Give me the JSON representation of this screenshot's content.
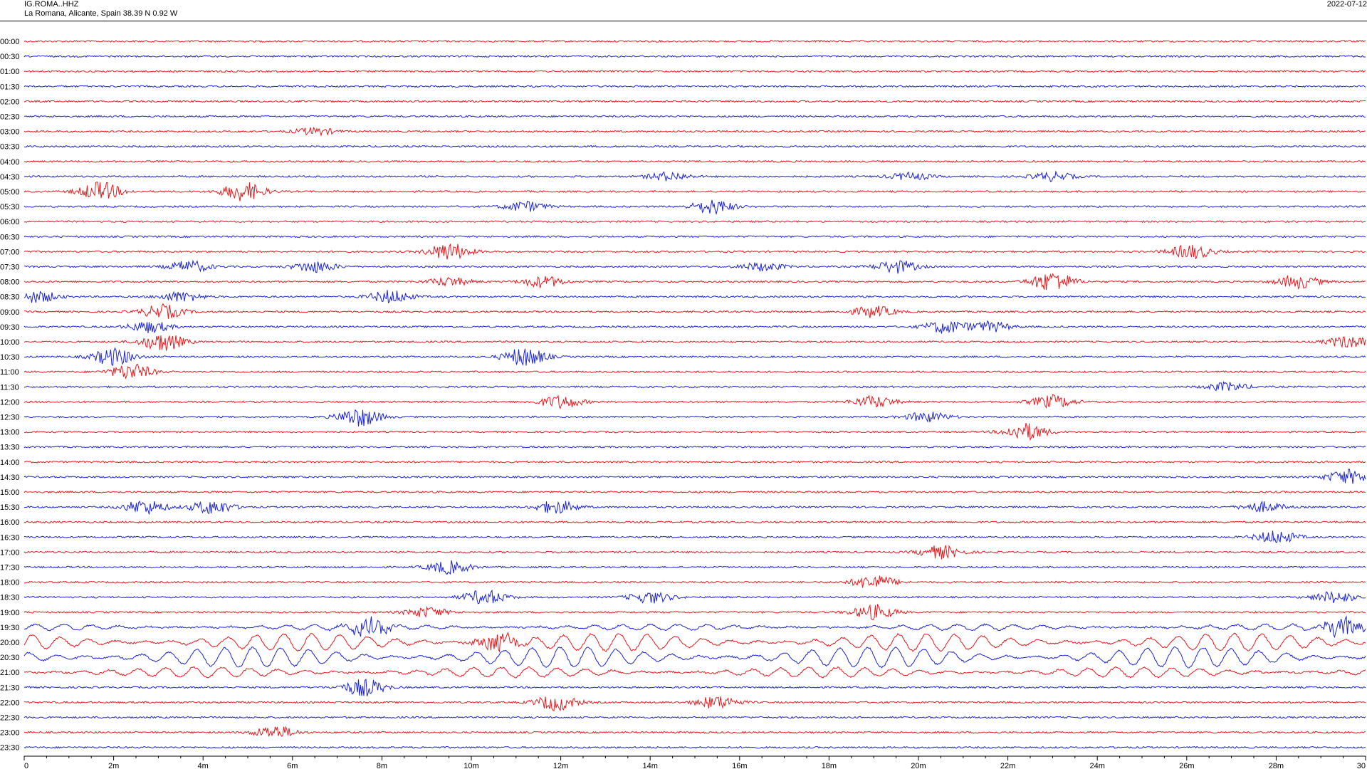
{
  "header": {
    "station": "IG.ROMA..HHZ",
    "location": "La Romana, Alicante, Spain  38.39 N 0.92 W",
    "date": "2022-07-12"
  },
  "chart_data": {
    "type": "line",
    "title": "IG.ROMA..HHZ",
    "subtitle": "La Romana, Alicante, Spain  38.39 N 0.92 W",
    "xlabel": "",
    "ylabel": "",
    "xlim": [
      0,
      30
    ],
    "x_ticks": [
      "0",
      "2m",
      "4m",
      "6m",
      "8m",
      "10m",
      "12m",
      "14m",
      "16m",
      "18m",
      "20m",
      "22m",
      "24m",
      "26m",
      "28m",
      "30"
    ],
    "colors": [
      "#e8171b",
      "#1a22d6"
    ],
    "grid": false,
    "rows": [
      "00:00",
      "00:30",
      "01:00",
      "01:30",
      "02:00",
      "02:30",
      "03:00",
      "03:30",
      "04:00",
      "04:30",
      "05:00",
      "05:30",
      "06:00",
      "06:30",
      "07:00",
      "07:30",
      "08:00",
      "08:30",
      "09:00",
      "09:30",
      "10:00",
      "10:30",
      "11:00",
      "11:30",
      "12:00",
      "12:30",
      "13:00",
      "13:30",
      "14:00",
      "14:30",
      "15:00",
      "15:30",
      "16:00",
      "16:30",
      "17:00",
      "17:30",
      "18:00",
      "18:30",
      "19:00",
      "19:30",
      "20:00",
      "20:30",
      "21:00",
      "21:30",
      "22:00",
      "22:30",
      "23:00",
      "23:30"
    ],
    "events": [
      {
        "row": "03:00",
        "x": 6.5,
        "amp": 5
      },
      {
        "row": "04:30",
        "x": 14.4,
        "amp": 6
      },
      {
        "row": "04:30",
        "x": 19.8,
        "amp": 5
      },
      {
        "row": "04:30",
        "x": 23.0,
        "amp": 6
      },
      {
        "row": "05:00",
        "x": 1.7,
        "amp": 13
      },
      {
        "row": "05:00",
        "x": 4.9,
        "amp": 13
      },
      {
        "row": "05:30",
        "x": 11.2,
        "amp": 7
      },
      {
        "row": "05:30",
        "x": 15.4,
        "amp": 10
      },
      {
        "row": "07:00",
        "x": 9.5,
        "amp": 12
      },
      {
        "row": "07:00",
        "x": 26.1,
        "amp": 10
      },
      {
        "row": "07:30",
        "x": 3.7,
        "amp": 8
      },
      {
        "row": "07:30",
        "x": 6.5,
        "amp": 8
      },
      {
        "row": "07:30",
        "x": 16.5,
        "amp": 6
      },
      {
        "row": "07:30",
        "x": 19.5,
        "amp": 9
      },
      {
        "row": "08:00",
        "x": 9.5,
        "amp": 6
      },
      {
        "row": "08:00",
        "x": 11.6,
        "amp": 8
      },
      {
        "row": "08:00",
        "x": 23.0,
        "amp": 14
      },
      {
        "row": "08:00",
        "x": 28.5,
        "amp": 9
      },
      {
        "row": "08:30",
        "x": 0.3,
        "amp": 8
      },
      {
        "row": "08:30",
        "x": 3.5,
        "amp": 7
      },
      {
        "row": "08:30",
        "x": 8.2,
        "amp": 9
      },
      {
        "row": "09:00",
        "x": 3.1,
        "amp": 10
      },
      {
        "row": "09:00",
        "x": 19.0,
        "amp": 8
      },
      {
        "row": "09:30",
        "x": 2.8,
        "amp": 8
      },
      {
        "row": "09:30",
        "x": 20.6,
        "amp": 9
      },
      {
        "row": "09:30",
        "x": 21.6,
        "amp": 7
      },
      {
        "row": "10:00",
        "x": 3.1,
        "amp": 13
      },
      {
        "row": "10:00",
        "x": 29.6,
        "amp": 8
      },
      {
        "row": "10:30",
        "x": 2.0,
        "amp": 12
      },
      {
        "row": "10:30",
        "x": 11.2,
        "amp": 13
      },
      {
        "row": "11:00",
        "x": 2.4,
        "amp": 11
      },
      {
        "row": "11:30",
        "x": 26.9,
        "amp": 6
      },
      {
        "row": "12:00",
        "x": 12.0,
        "amp": 9
      },
      {
        "row": "12:00",
        "x": 19.0,
        "amp": 8
      },
      {
        "row": "12:00",
        "x": 23.0,
        "amp": 9
      },
      {
        "row": "12:30",
        "x": 7.5,
        "amp": 13
      },
      {
        "row": "12:30",
        "x": 20.2,
        "amp": 7
      },
      {
        "row": "13:00",
        "x": 22.4,
        "amp": 12
      },
      {
        "row": "14:30",
        "x": 29.6,
        "amp": 10
      },
      {
        "row": "15:30",
        "x": 2.7,
        "amp": 10
      },
      {
        "row": "15:30",
        "x": 4.2,
        "amp": 10
      },
      {
        "row": "15:30",
        "x": 11.9,
        "amp": 9
      },
      {
        "row": "15:30",
        "x": 27.7,
        "amp": 7
      },
      {
        "row": "16:30",
        "x": 28.0,
        "amp": 9
      },
      {
        "row": "17:00",
        "x": 20.5,
        "amp": 9
      },
      {
        "row": "17:30",
        "x": 9.5,
        "amp": 9
      },
      {
        "row": "18:00",
        "x": 19.0,
        "amp": 10
      },
      {
        "row": "18:30",
        "x": 10.3,
        "amp": 10
      },
      {
        "row": "18:30",
        "x": 14.0,
        "amp": 8
      },
      {
        "row": "18:30",
        "x": 29.3,
        "amp": 8
      },
      {
        "row": "19:00",
        "x": 9.0,
        "amp": 7
      },
      {
        "row": "19:00",
        "x": 19.0,
        "amp": 10
      },
      {
        "row": "19:30",
        "x": 7.7,
        "amp": 11
      },
      {
        "row": "19:30",
        "x": 29.5,
        "amp": 12
      },
      {
        "row": "20:00",
        "x": 10.6,
        "amp": 12
      },
      {
        "row": "21:30",
        "x": 7.6,
        "amp": 12
      },
      {
        "row": "22:00",
        "x": 11.9,
        "amp": 11
      },
      {
        "row": "22:00",
        "x": 15.5,
        "amp": 9
      },
      {
        "row": "23:00",
        "x": 5.6,
        "amp": 9
      }
    ],
    "surface_waves": [
      {
        "row": "19:30",
        "amp": 4
      },
      {
        "row": "20:00",
        "amp": 12
      },
      {
        "row": "20:30",
        "amp": 14
      },
      {
        "row": "21:00",
        "amp": 7
      }
    ]
  }
}
